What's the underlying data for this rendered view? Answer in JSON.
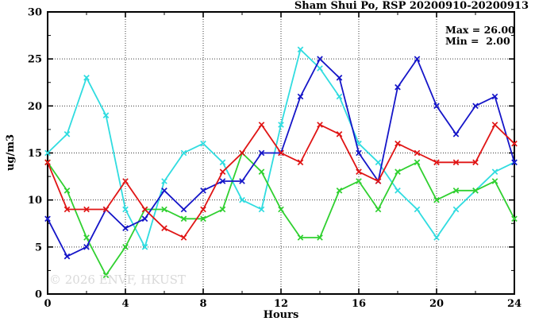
{
  "header": {
    "title": "Sham Shui Po, RSP 20200910-20200913"
  },
  "annotation": {
    "max_label": "Max = 26.00",
    "min_label": "Min =  2.00"
  },
  "watermark": "© 2026 ENVF, HKUST",
  "colors": {
    "blue": "#1515c8",
    "red": "#e01515",
    "green": "#30d030",
    "cyan": "#30dce0"
  },
  "chart_data": {
    "type": "line",
    "title": "Sham Shui Po, RSP 20200910-20200913",
    "xlabel": "Hours",
    "ylabel": "ug/m3",
    "xlim": [
      0,
      24
    ],
    "ylim": [
      0,
      30
    ],
    "x_major_ticks": [
      0,
      4,
      8,
      12,
      16,
      20,
      24
    ],
    "x_minor_step": 2,
    "y_major_ticks": [
      0,
      5,
      10,
      15,
      20,
      25,
      30
    ],
    "y_minor_step": 2.5,
    "grid": "dotted-at-major-ticks",
    "legend_position": "none",
    "stat_max": 26.0,
    "stat_min": 2.0,
    "x": [
      0,
      1,
      2,
      3,
      4,
      5,
      6,
      7,
      8,
      9,
      10,
      11,
      12,
      13,
      14,
      15,
      16,
      17,
      18,
      19,
      20,
      21,
      22,
      23,
      24
    ],
    "series": [
      {
        "name": "cyan-series",
        "color_key": "cyan",
        "values": [
          15,
          17,
          23,
          19,
          9,
          5,
          12,
          15,
          16,
          14,
          10,
          9,
          18,
          26,
          24,
          21,
          16,
          14,
          11,
          9,
          6,
          9,
          11,
          13,
          14
        ]
      },
      {
        "name": "green-series",
        "color_key": "green",
        "values": [
          14,
          11,
          6,
          2,
          5,
          9,
          9,
          8,
          8,
          9,
          15,
          13,
          9,
          6,
          6,
          11,
          12,
          9,
          13,
          14,
          10,
          11,
          11,
          12,
          8
        ]
      },
      {
        "name": "blue-series",
        "color_key": "blue",
        "values": [
          8,
          4,
          5,
          9,
          7,
          8,
          11,
          9,
          11,
          12,
          12,
          15,
          15,
          21,
          25,
          23,
          15,
          12,
          22,
          25,
          20,
          17,
          20,
          21,
          14
        ]
      },
      {
        "name": "red-series",
        "color_key": "red",
        "values": [
          14,
          9,
          9,
          9,
          12,
          9,
          7,
          6,
          9,
          13,
          15,
          18,
          15,
          14,
          18,
          17,
          13,
          12,
          16,
          15,
          14,
          14,
          14,
          18,
          16
        ]
      }
    ]
  }
}
